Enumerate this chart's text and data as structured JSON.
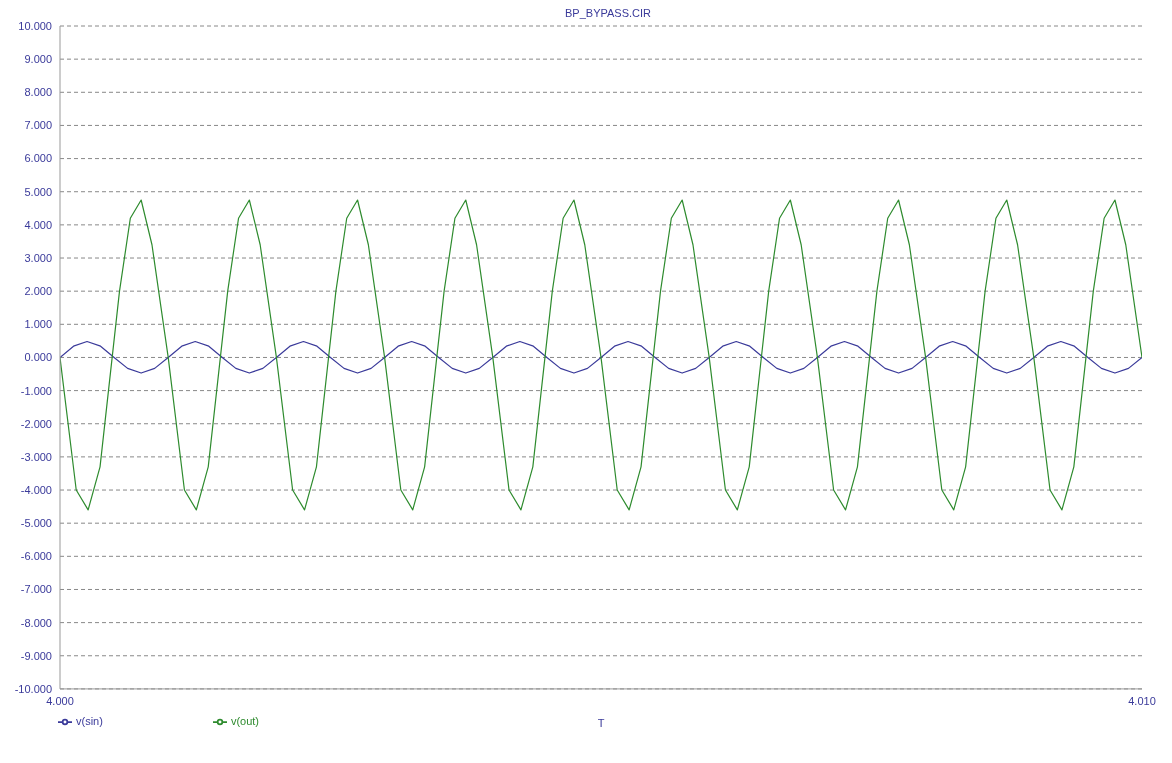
{
  "chart_data": {
    "type": "line",
    "title": "BP_BYPASS.CIR",
    "xlabel": "T",
    "xlim": [
      4.0,
      4.01
    ],
    "xticks": [
      {
        "value": 4.0,
        "label": "4.000"
      },
      {
        "value": 4.01,
        "label": "4.010"
      }
    ],
    "ylim": [
      -10,
      10
    ],
    "yticks": [
      {
        "value": -10,
        "label": "-10.000"
      },
      {
        "value": -9,
        "label": "-9.000"
      },
      {
        "value": -8,
        "label": "-8.000"
      },
      {
        "value": -7,
        "label": "-7.000"
      },
      {
        "value": -6,
        "label": "-6.000"
      },
      {
        "value": -5,
        "label": "-5.000"
      },
      {
        "value": -4,
        "label": "-4.000"
      },
      {
        "value": -3,
        "label": "-3.000"
      },
      {
        "value": -2,
        "label": "-2.000"
      },
      {
        "value": -1,
        "label": "-1.000"
      },
      {
        "value": 0,
        "label": "0.000"
      },
      {
        "value": 1,
        "label": "1.000"
      },
      {
        "value": 2,
        "label": "2.000"
      },
      {
        "value": 3,
        "label": "3.000"
      },
      {
        "value": 4,
        "label": "4.000"
      },
      {
        "value": 5,
        "label": "5.000"
      },
      {
        "value": 6,
        "label": "6.000"
      },
      {
        "value": 7,
        "label": "7.000"
      },
      {
        "value": 8,
        "label": "8.000"
      },
      {
        "value": 9,
        "label": "9.000"
      },
      {
        "value": 10,
        "label": "10.000"
      }
    ],
    "grid": "y",
    "legend": "bottom left",
    "marker": "none",
    "line_style": "solid",
    "series": [
      {
        "name": "v(sin)",
        "color": "#3a3a9a",
        "x": [
          4.0,
          4.000125,
          4.00025,
          4.000375,
          4.0005,
          4.000625,
          4.00075,
          4.000875,
          4.001,
          4.001125,
          4.00125,
          4.001375,
          4.0015,
          4.001625,
          4.00175,
          4.001875,
          4.002,
          4.002125,
          4.00225,
          4.002375,
          4.0025,
          4.002625,
          4.00275,
          4.002875,
          4.003,
          4.003125,
          4.00325,
          4.003375,
          4.0035,
          4.003625,
          4.00375,
          4.003875,
          4.004,
          4.004125,
          4.00425,
          4.004375,
          4.0045,
          4.004625,
          4.00475,
          4.004875,
          4.005,
          4.005125,
          4.00525,
          4.005375,
          4.0055,
          4.005625,
          4.00575,
          4.005875,
          4.006,
          4.006125,
          4.00625,
          4.006375,
          4.0065,
          4.006625,
          4.00675,
          4.006875,
          4.007,
          4.007125,
          4.00725,
          4.007375,
          4.0075,
          4.007625,
          4.00775,
          4.007875,
          4.008,
          4.008125,
          4.00825,
          4.008375,
          4.0085,
          4.008625,
          4.00875,
          4.008875,
          4.009,
          4.009125,
          4.00925,
          4.009375,
          4.0095,
          4.009625,
          4.00975,
          4.009875,
          4.01
        ],
        "values": [
          0,
          0.34,
          0.48,
          0.34,
          0,
          -0.33,
          -0.47,
          -0.33,
          0,
          0.34,
          0.48,
          0.34,
          0,
          -0.33,
          -0.47,
          -0.33,
          0,
          0.34,
          0.48,
          0.34,
          0,
          -0.33,
          -0.47,
          -0.33,
          0,
          0.34,
          0.48,
          0.34,
          0,
          -0.33,
          -0.47,
          -0.33,
          0,
          0.34,
          0.48,
          0.34,
          0,
          -0.33,
          -0.47,
          -0.33,
          0,
          0.34,
          0.48,
          0.34,
          0,
          -0.33,
          -0.47,
          -0.33,
          0,
          0.34,
          0.48,
          0.34,
          0,
          -0.33,
          -0.47,
          -0.33,
          0,
          0.34,
          0.48,
          0.34,
          0,
          -0.33,
          -0.47,
          -0.33,
          0,
          0.34,
          0.48,
          0.34,
          0,
          -0.33,
          -0.47,
          -0.33,
          0,
          0.34,
          0.48,
          0.34,
          0,
          -0.33,
          -0.47,
          -0.33,
          0
        ]
      },
      {
        "name": "v(out)",
        "color": "#2e8b2e",
        "x": [
          4.0,
          4.00015,
          4.00026,
          4.00037,
          4.00055,
          4.00065,
          4.00075,
          4.00085,
          4.001,
          4.00115,
          4.00126,
          4.00137,
          4.00155,
          4.00165,
          4.00175,
          4.00185,
          4.002,
          4.00215,
          4.00226,
          4.00237,
          4.00255,
          4.00265,
          4.00275,
          4.00285,
          4.003,
          4.00315,
          4.00326,
          4.00337,
          4.00355,
          4.00365,
          4.00375,
          4.00385,
          4.004,
          4.00415,
          4.00426,
          4.00437,
          4.00455,
          4.00465,
          4.00475,
          4.00485,
          4.005,
          4.00515,
          4.00526,
          4.00537,
          4.00555,
          4.00565,
          4.00575,
          4.00585,
          4.006,
          4.00615,
          4.00626,
          4.00637,
          4.00655,
          4.00665,
          4.00675,
          4.00685,
          4.007,
          4.00715,
          4.00726,
          4.00737,
          4.00755,
          4.00765,
          4.00775,
          4.00785,
          4.008,
          4.00815,
          4.00826,
          4.00837,
          4.00855,
          4.00865,
          4.00875,
          4.00885,
          4.009,
          4.00915,
          4.00926,
          4.00937,
          4.00955,
          4.00965,
          4.00975,
          4.00985,
          4.01
        ],
        "values": [
          0,
          -4.0,
          -4.6,
          -3.3,
          2.0,
          4.2,
          4.75,
          3.4,
          0,
          -4.0,
          -4.6,
          -3.3,
          2.0,
          4.2,
          4.75,
          3.4,
          0,
          -4.0,
          -4.6,
          -3.3,
          2.0,
          4.2,
          4.75,
          3.4,
          0,
          -4.0,
          -4.6,
          -3.3,
          2.0,
          4.2,
          4.75,
          3.4,
          0,
          -4.0,
          -4.6,
          -3.3,
          2.0,
          4.2,
          4.75,
          3.4,
          0,
          -4.0,
          -4.6,
          -3.3,
          2.0,
          4.2,
          4.75,
          3.4,
          0,
          -4.0,
          -4.6,
          -3.3,
          2.0,
          4.2,
          4.75,
          3.4,
          0,
          -4.0,
          -4.6,
          -3.3,
          2.0,
          4.2,
          4.75,
          3.4,
          0,
          -4.0,
          -4.6,
          -3.3,
          2.0,
          4.2,
          4.75,
          3.4,
          0,
          -4.0,
          -4.6,
          -3.3,
          2.0,
          4.2,
          4.75,
          3.4,
          0
        ]
      }
    ]
  }
}
